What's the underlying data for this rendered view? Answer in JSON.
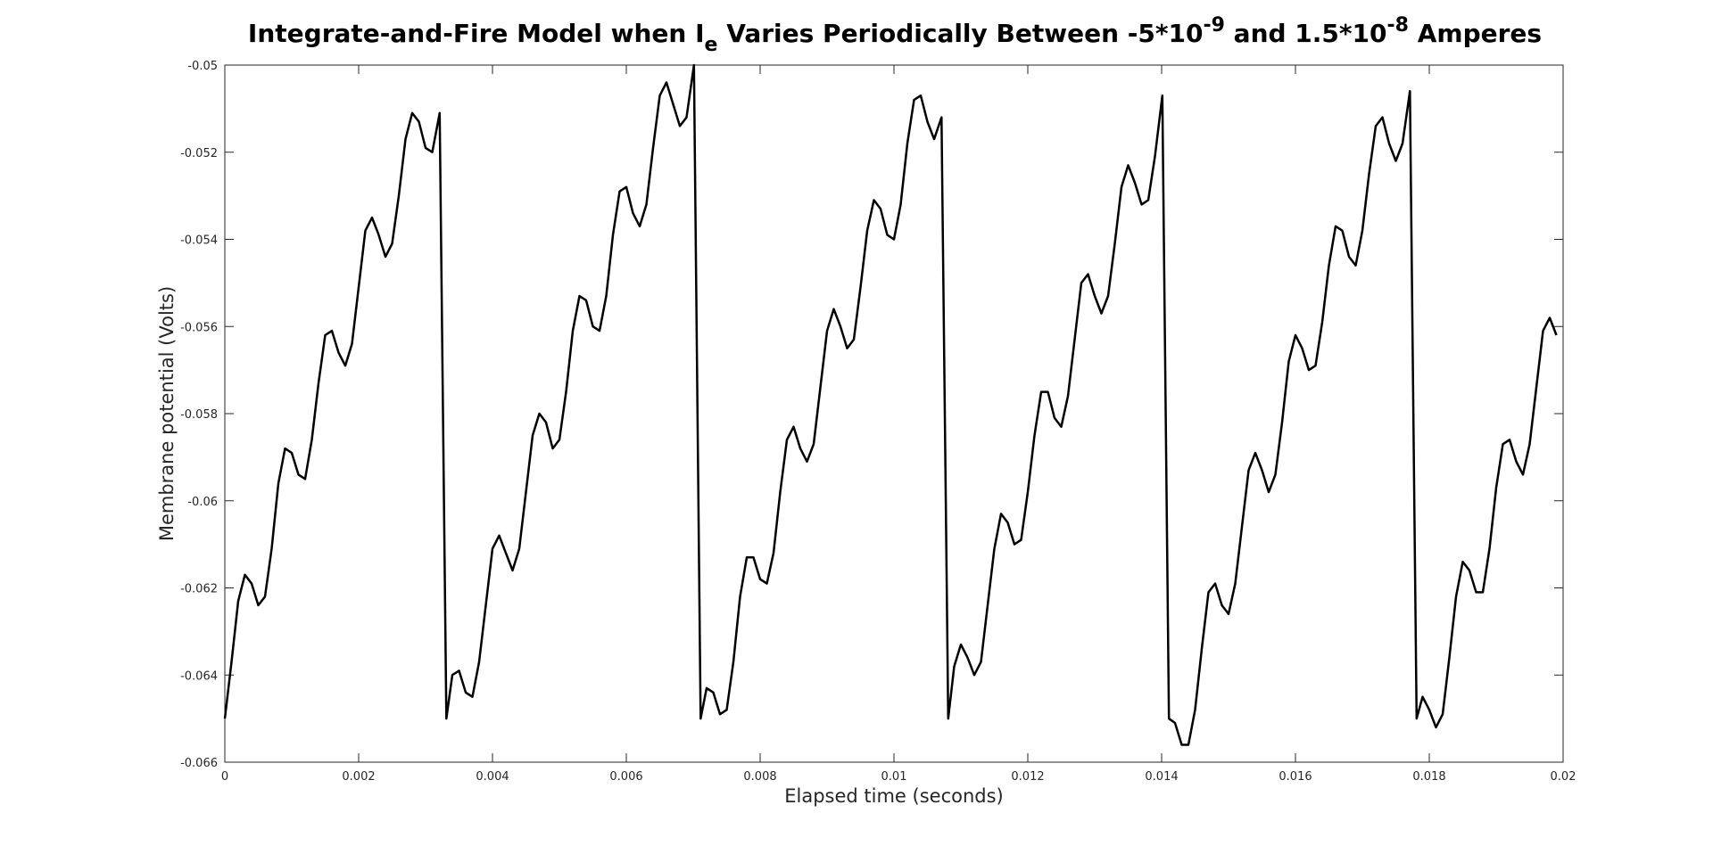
{
  "chart_data": {
    "type": "line",
    "title": {
      "parts": [
        {
          "text": "Integrate-and-Fire Model when I",
          "style": "normal"
        },
        {
          "text": "e",
          "style": "sub"
        },
        {
          "text": " Varies Periodically Between -5*10",
          "style": "normal"
        },
        {
          "text": "-9",
          "style": "sup"
        },
        {
          "text": " and 1.5*10",
          "style": "normal"
        },
        {
          "text": "-8",
          "style": "sup"
        },
        {
          "text": " Amperes",
          "style": "normal"
        }
      ]
    },
    "xlabel": "Elapsed time (seconds)",
    "ylabel": "Membrane potential (Volts)",
    "xlim": [
      0,
      0.02
    ],
    "ylim": [
      -0.066,
      -0.05
    ],
    "xticks": [
      0,
      0.002,
      0.004,
      0.006,
      0.008,
      0.01,
      0.012,
      0.014,
      0.016,
      0.018,
      0.02
    ],
    "xtick_labels": [
      "0",
      "0.002",
      "0.004",
      "0.006",
      "0.008",
      "0.01",
      "0.012",
      "0.014",
      "0.016",
      "0.018",
      "0.02"
    ],
    "yticks": [
      -0.066,
      -0.064,
      -0.062,
      -0.06,
      -0.058,
      -0.056,
      -0.054,
      -0.052,
      -0.05
    ],
    "ytick_labels": [
      "-0.066",
      "-0.064",
      "-0.062",
      "-0.06",
      "-0.058",
      "-0.056",
      "-0.054",
      "-0.052",
      "-0.05"
    ],
    "grid": false,
    "line_color": "#000000",
    "series": [
      {
        "x": [
          0,
          0.0001,
          0.0002,
          0.0003,
          0.0004,
          0.0005,
          0.0006,
          0.0007,
          0.0008,
          0.0009,
          0.001,
          0.0011,
          0.0012,
          0.0013,
          0.0014,
          0.0015,
          0.0016,
          0.0017,
          0.0018,
          0.0019,
          0.002,
          0.0021,
          0.0022,
          0.0023,
          0.0024,
          0.0025,
          0.0026,
          0.0027,
          0.0028,
          0.0029,
          0.003,
          0.0031,
          0.00321,
          0.00331,
          0.0034,
          0.0035,
          0.0036,
          0.0037,
          0.0038,
          0.0039,
          0.004,
          0.0041,
          0.0042,
          0.0043,
          0.0044,
          0.0045,
          0.0046,
          0.0047,
          0.0048,
          0.0049,
          0.005,
          0.0051,
          0.0052,
          0.0053,
          0.0054,
          0.0055,
          0.0056,
          0.0057,
          0.0058,
          0.0059,
          0.006,
          0.0061,
          0.0062,
          0.0063,
          0.0064,
          0.0065,
          0.0066,
          0.0067,
          0.0068,
          0.0069,
          0.00701,
          0.00711,
          0.0072,
          0.0073,
          0.0074,
          0.0075,
          0.0076,
          0.0077,
          0.0078,
          0.0079,
          0.008,
          0.0081,
          0.0082,
          0.0083,
          0.0084,
          0.0085,
          0.0086,
          0.0087,
          0.0088,
          0.0089,
          0.009,
          0.0091,
          0.0092,
          0.0093,
          0.0094,
          0.0095,
          0.0096,
          0.0097,
          0.0098,
          0.0099,
          0.01,
          0.0101,
          0.0102,
          0.0103,
          0.0104,
          0.0105,
          0.0106,
          0.01071,
          0.01081,
          0.0109,
          0.011,
          0.0111,
          0.0112,
          0.0113,
          0.0114,
          0.0115,
          0.0116,
          0.0117,
          0.0118,
          0.0119,
          0.012,
          0.0121,
          0.0122,
          0.0123,
          0.0124,
          0.0125,
          0.0126,
          0.0127,
          0.0128,
          0.0129,
          0.013,
          0.0131,
          0.0132,
          0.0133,
          0.0134,
          0.0135,
          0.0136,
          0.0137,
          0.0138,
          0.0139,
          0.01401,
          0.01411,
          0.0142,
          0.0143,
          0.0144,
          0.0145,
          0.0146,
          0.0147,
          0.0148,
          0.0149,
          0.015,
          0.0151,
          0.0152,
          0.0153,
          0.0154,
          0.0155,
          0.0156,
          0.0157,
          0.0158,
          0.0159,
          0.016,
          0.0161,
          0.0162,
          0.0163,
          0.0164,
          0.0165,
          0.0166,
          0.0167,
          0.0168,
          0.0169,
          0.017,
          0.0171,
          0.0172,
          0.0173,
          0.0174,
          0.0175,
          0.0176,
          0.01771,
          0.01781,
          0.0179,
          0.018,
          0.0181,
          0.0182,
          0.0183,
          0.0184,
          0.0185,
          0.0186,
          0.0187,
          0.0188,
          0.0189,
          0.019,
          0.0191,
          0.0192,
          0.0193,
          0.0194,
          0.0195,
          0.0196,
          0.0197,
          0.0198,
          0.0199
        ],
        "y": [
          -0.065,
          -0.0637,
          -0.0623,
          -0.0617,
          -0.0619,
          -0.0624,
          -0.0622,
          -0.0611,
          -0.0596,
          -0.0588,
          -0.0589,
          -0.0594,
          -0.0595,
          -0.0586,
          -0.0573,
          -0.0562,
          -0.0561,
          -0.0566,
          -0.0569,
          -0.0564,
          -0.0551,
          -0.0538,
          -0.0535,
          -0.0539,
          -0.0544,
          -0.0541,
          -0.053,
          -0.0517,
          -0.0511,
          -0.0513,
          -0.0519,
          -0.052,
          -0.0511,
          -0.065,
          -0.064,
          -0.0639,
          -0.0644,
          -0.0645,
          -0.0637,
          -0.0624,
          -0.0611,
          -0.0608,
          -0.0612,
          -0.0616,
          -0.0611,
          -0.0598,
          -0.0585,
          -0.058,
          -0.0582,
          -0.0588,
          -0.0586,
          -0.0575,
          -0.0561,
          -0.0553,
          -0.0554,
          -0.056,
          -0.0561,
          -0.0553,
          -0.0539,
          -0.0529,
          -0.0528,
          -0.0534,
          -0.0537,
          -0.0532,
          -0.0519,
          -0.0507,
          -0.0504,
          -0.0509,
          -0.0514,
          -0.0512,
          -0.05,
          -0.065,
          -0.0643,
          -0.0644,
          -0.0649,
          -0.0648,
          -0.0637,
          -0.0622,
          -0.0613,
          -0.0613,
          -0.0618,
          -0.0619,
          -0.0612,
          -0.0598,
          -0.0586,
          -0.0583,
          -0.0588,
          -0.0591,
          -0.0587,
          -0.0574,
          -0.0561,
          -0.0556,
          -0.056,
          -0.0565,
          -0.0563,
          -0.0551,
          -0.0538,
          -0.0531,
          -0.0533,
          -0.0539,
          -0.054,
          -0.0532,
          -0.0518,
          -0.0508,
          -0.0507,
          -0.0513,
          -0.0517,
          -0.0512,
          -0.065,
          -0.0638,
          -0.0633,
          -0.0636,
          -0.064,
          -0.0637,
          -0.0624,
          -0.0611,
          -0.0603,
          -0.0605,
          -0.061,
          -0.0609,
          -0.0598,
          -0.0585,
          -0.0575,
          -0.0575,
          -0.0581,
          -0.0583,
          -0.0576,
          -0.0563,
          -0.055,
          -0.0548,
          -0.0553,
          -0.0557,
          -0.0553,
          -0.0541,
          -0.0528,
          -0.0523,
          -0.0527,
          -0.0532,
          -0.0531,
          -0.0521,
          -0.0507,
          -0.065,
          -0.0651,
          -0.0656,
          -0.0656,
          -0.0648,
          -0.0634,
          -0.0621,
          -0.0619,
          -0.0624,
          -0.0626,
          -0.0619,
          -0.0606,
          -0.0593,
          -0.0589,
          -0.0593,
          -0.0598,
          -0.0594,
          -0.0582,
          -0.0568,
          -0.0562,
          -0.0565,
          -0.057,
          -0.0569,
          -0.0559,
          -0.0546,
          -0.0537,
          -0.0538,
          -0.0544,
          -0.0546,
          -0.0538,
          -0.0525,
          -0.0514,
          -0.0512,
          -0.0518,
          -0.0522,
          -0.0518,
          -0.0506,
          -0.065,
          -0.0645,
          -0.0648,
          -0.0652,
          -0.0649,
          -0.0636,
          -0.0622,
          -0.0614,
          -0.0616,
          -0.0621,
          -0.0621,
          -0.0611,
          -0.0597,
          -0.0587,
          -0.0586,
          -0.0591,
          -0.0594,
          -0.0587,
          -0.0574,
          -0.0561,
          -0.0558,
          -0.0562
        ]
      }
    ]
  }
}
